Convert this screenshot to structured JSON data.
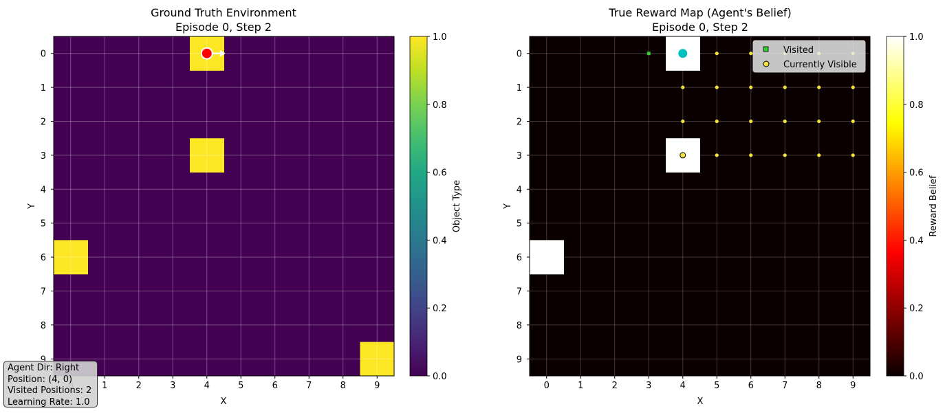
{
  "grid_size": 10,
  "agent": {
    "position": [
      4,
      0
    ],
    "direction": "Right"
  },
  "visited_positions": [
    [
      3,
      0
    ],
    [
      4,
      0
    ]
  ],
  "info": {
    "dir": "Agent Dir: Right",
    "position": "Position: (4, 0)",
    "visited": "Visited Positions: 2",
    "lr": "Learning Rate: 1.0"
  },
  "chart_data": [
    {
      "type": "heatmap",
      "title": "Ground Truth Environment",
      "subtitle": "Episode 0, Step 2",
      "xlabel": "X",
      "ylabel": "Y",
      "xticks": [
        "0",
        "1",
        "2",
        "3",
        "4",
        "5",
        "6",
        "7",
        "8",
        "9"
      ],
      "yticks": [
        "0",
        "1",
        "2",
        "3",
        "4",
        "5",
        "6",
        "7",
        "8",
        "9"
      ],
      "grid": true,
      "colormap": "viridis",
      "colorbar": {
        "label": "Object Type",
        "range": [
          0.0,
          1.0
        ],
        "ticks": [
          "0.0",
          "0.2",
          "0.4",
          "0.6",
          "0.8",
          "1.0"
        ]
      },
      "cells_value_1": [
        [
          4,
          0
        ],
        [
          4,
          3
        ],
        [
          0,
          6
        ],
        [
          9,
          9
        ]
      ],
      "background_value": 0.0,
      "agent_marker": {
        "position": [
          4,
          0
        ],
        "direction": "Right",
        "color": "#ff0000"
      }
    },
    {
      "type": "heatmap",
      "title": "True Reward Map (Agent's Belief)",
      "subtitle": "Episode 0, Step 2",
      "xlabel": "X",
      "ylabel": "Y",
      "xticks": [
        "0",
        "1",
        "2",
        "3",
        "4",
        "5",
        "6",
        "7",
        "8",
        "9"
      ],
      "yticks": [
        "0",
        "1",
        "2",
        "3",
        "4",
        "5",
        "6",
        "7",
        "8",
        "9"
      ],
      "grid": true,
      "colormap": "hot",
      "colorbar": {
        "label": "Reward Belief",
        "range": [
          0.0,
          1.0
        ],
        "ticks": [
          "0.0",
          "0.2",
          "0.4",
          "0.6",
          "0.8",
          "1.0"
        ]
      },
      "cells_value_1": [
        [
          4,
          0
        ],
        [
          4,
          3
        ],
        [
          0,
          6
        ]
      ],
      "background_value": 0.0,
      "visited_markers": [
        [
          3,
          0
        ]
      ],
      "visible_points": [
        [
          5,
          0
        ],
        [
          6,
          0
        ],
        [
          7,
          0
        ],
        [
          8,
          0
        ],
        [
          9,
          0
        ],
        [
          4,
          1
        ],
        [
          5,
          1
        ],
        [
          6,
          1
        ],
        [
          7,
          1
        ],
        [
          8,
          1
        ],
        [
          9,
          1
        ],
        [
          4,
          2
        ],
        [
          5,
          2
        ],
        [
          6,
          2
        ],
        [
          7,
          2
        ],
        [
          8,
          2
        ],
        [
          9,
          2
        ],
        [
          4,
          3
        ],
        [
          5,
          3
        ],
        [
          6,
          3
        ],
        [
          7,
          3
        ],
        [
          8,
          3
        ],
        [
          9,
          3
        ]
      ],
      "agent_marker": {
        "position": [
          4,
          0
        ],
        "direction": "Right",
        "color": "#00bfbf"
      },
      "legend": {
        "placement": "top-right",
        "entries": [
          "Visited",
          "Currently Visible"
        ]
      }
    }
  ],
  "colors": {
    "viridis_low": "#440154",
    "viridis_high": "#fde725",
    "hot_low": "#0b0000",
    "hot_high": "#ffffff",
    "visited": "#33cc33",
    "visible": "#f0e040",
    "agent_right": "#00bfbf",
    "agent_left": "#ff0000"
  }
}
